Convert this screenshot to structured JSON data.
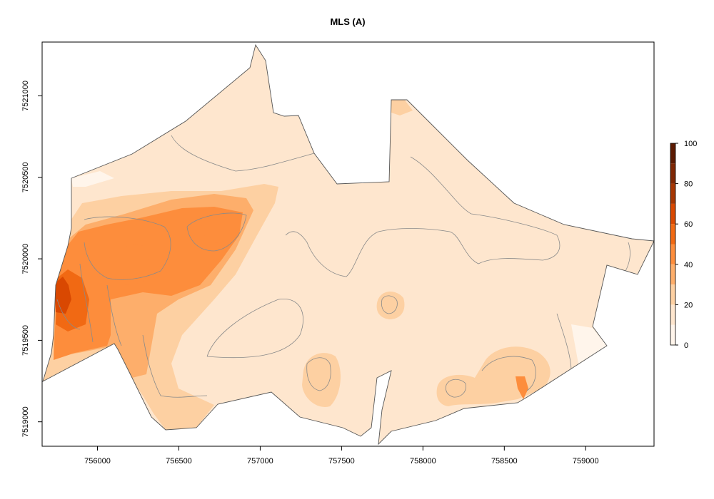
{
  "chart_data": {
    "type": "heatmap",
    "title": "MLS (A)",
    "x_ticks": [
      "756000",
      "756500",
      "757000",
      "757500",
      "758000",
      "758500",
      "759000"
    ],
    "x_tick_values": [
      756000,
      756500,
      757000,
      757500,
      758000,
      758500,
      759000
    ],
    "y_ticks": [
      "7519000",
      "7519500",
      "7520000",
      "7520500",
      "7521000"
    ],
    "y_tick_values": [
      7519000,
      7519500,
      7520000,
      7520500,
      7521000
    ],
    "xlim": [
      755660,
      759420
    ],
    "ylim": [
      7518850,
      7521330
    ],
    "legend": {
      "position": "right",
      "ticks": [
        "0",
        "20",
        "40",
        "60",
        "80",
        "100"
      ],
      "tick_values": [
        0,
        20,
        40,
        60,
        80,
        100
      ],
      "range": [
        0,
        100
      ],
      "class_breaks": [
        0,
        10,
        20,
        30,
        40,
        50,
        60,
        70,
        80,
        90,
        100
      ],
      "colors": [
        "#fff5eb",
        "#fee6ce",
        "#fdd0a2",
        "#fdae6b",
        "#fd8d3c",
        "#f16913",
        "#d94801",
        "#a63603",
        "#7f2704",
        "#5c1a02"
      ]
    },
    "region_fills": {
      "class_0_10": "#fff5eb",
      "class_10_20": "#fee6ce",
      "class_20_30": "#fdd0a2",
      "class_30_40": "#fdae6b",
      "class_40_50": "#fd8d3c",
      "class_50_60": "#f16913",
      "class_60_70": "#d94801"
    },
    "outline_color": "#555555",
    "contour_color": "#8a8a8a"
  }
}
